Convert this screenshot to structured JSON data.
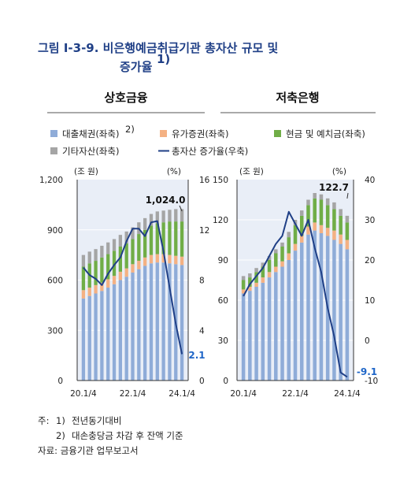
{
  "figure": {
    "title_line1": "그림 Ⅰ-3-9. 비은행예금취급기관 총자산 규모 및",
    "title_line2": "증가율",
    "title_sup": "1)"
  },
  "legend": [
    {
      "label": "대출채권(좌축)",
      "sup": "2)",
      "color": "#8facd8",
      "kind": "box"
    },
    {
      "label": "유가증권(좌축)",
      "color": "#f4b183",
      "kind": "box"
    },
    {
      "label": "현금 및 예치금(좌축)",
      "color": "#70ad47",
      "kind": "box"
    },
    {
      "label": "기타자산(좌축)",
      "color": "#a5a5a5",
      "kind": "box"
    },
    {
      "label": "총자산 증가율(우축)",
      "color": "#1f3f86",
      "kind": "line"
    }
  ],
  "notes": {
    "n1_prefix": "주:",
    "n1_num": "1)",
    "n1_text": "전년동기대비",
    "n2_num": "2)",
    "n2_text": "대손충당금 차감 후 잔액 기준",
    "source": "자료: 금융기관 업무보고서"
  },
  "chart_data": [
    {
      "type": "bar",
      "subtype": "stacked bar + line (dual axis)",
      "title": "상호금융",
      "left_unit": "(조 원)",
      "right_unit": "(%)",
      "ylim": [
        0,
        1200
      ],
      "yticks": [
        "0",
        "300",
        "600",
        "900",
        "1,200"
      ],
      "y2lim": [
        0,
        16
      ],
      "y2ticks": [
        "0",
        "4",
        "8",
        "12",
        "16"
      ],
      "xticks": [
        "20.1/4",
        "22.1/4",
        "24.1/4"
      ],
      "callouts": {
        "total": "1,024.0",
        "growth": "2.1"
      },
      "categories": [
        "20.1/4",
        "20.2/4",
        "20.3/4",
        "20.4/4",
        "21.1/4",
        "21.2/4",
        "21.3/4",
        "21.4/4",
        "22.1/4",
        "22.2/4",
        "22.3/4",
        "22.4/4",
        "23.1/4",
        "23.2/4",
        "23.3/4",
        "23.4/4",
        "24.1/4"
      ],
      "series": [
        {
          "name": "대출채권(좌축)",
          "values": [
            490,
            505,
            520,
            535,
            555,
            575,
            600,
            620,
            645,
            665,
            685,
            700,
            705,
            705,
            700,
            695,
            690
          ]
        },
        {
          "name": "유가증권(좌축)",
          "values": [
            50,
            50,
            50,
            50,
            50,
            50,
            50,
            50,
            50,
            50,
            50,
            50,
            50,
            50,
            50,
            50,
            50
          ]
        },
        {
          "name": "현금 및 예치금(좌축)",
          "values": [
            140,
            145,
            145,
            150,
            150,
            150,
            150,
            150,
            150,
            160,
            165,
            175,
            185,
            190,
            200,
            205,
            210
          ]
        },
        {
          "name": "기타자산(좌축)",
          "values": [
            70,
            70,
            70,
            70,
            70,
            70,
            70,
            70,
            70,
            70,
            70,
            70,
            70,
            70,
            70,
            74,
            74
          ]
        },
        {
          "name": "총자산 증가율(우축)",
          "values": [
            9.0,
            8.4,
            8.1,
            7.6,
            8.5,
            9.2,
            9.8,
            11.1,
            12.1,
            12.1,
            11.5,
            12.6,
            12.7,
            10.3,
            7.4,
            4.5,
            2.1
          ]
        }
      ]
    },
    {
      "type": "bar",
      "subtype": "stacked bar + line (dual axis)",
      "title": "저축은행",
      "left_unit": "(조 원)",
      "right_unit": "(%)",
      "ylim": [
        0,
        150
      ],
      "yticks": [
        "0",
        "30",
        "60",
        "90",
        "120",
        "150"
      ],
      "y2lim": [
        -10,
        40
      ],
      "y2ticks": [
        "-10",
        "0",
        "10",
        "20",
        "30",
        "40"
      ],
      "xticks": [
        "20.1/4",
        "22.1/4",
        "24.1/4"
      ],
      "callouts": {
        "total": "122.7",
        "growth": "-9.1"
      },
      "categories": [
        "20.1/4",
        "20.2/4",
        "20.3/4",
        "20.4/4",
        "21.1/4",
        "21.2/4",
        "21.3/4",
        "21.4/4",
        "22.1/4",
        "22.2/4",
        "22.3/4",
        "22.4/4",
        "23.1/4",
        "23.2/4",
        "23.3/4",
        "23.4/4",
        "24.1/4"
      ],
      "series": [
        {
          "name": "대출채권(좌축)",
          "values": [
            65,
            67,
            70,
            73,
            77,
            81,
            85,
            90,
            97,
            103,
            109,
            112,
            110,
            108,
            105,
            102,
            98
          ]
        },
        {
          "name": "유가증권(좌축)",
          "values": [
            3,
            3,
            3,
            4,
            4,
            4,
            4,
            5,
            5,
            5,
            6,
            6,
            6,
            6,
            7,
            7,
            7
          ]
        },
        {
          "name": "현금 및 예치금(좌축)",
          "values": [
            7,
            7,
            8,
            8,
            9,
            10,
            11,
            12,
            14,
            15,
            16,
            18,
            19,
            17,
            16,
            14,
            13
          ]
        },
        {
          "name": "기타자산(좌축)",
          "values": [
            3,
            3,
            3,
            3,
            3,
            3,
            3,
            4,
            4,
            4,
            4,
            4,
            4,
            5,
            5,
            5,
            5
          ]
        },
        {
          "name": "총자산 증가율(우축)",
          "values": [
            11,
            14,
            16,
            18,
            21,
            24,
            26,
            32,
            29,
            26,
            30,
            23,
            17,
            8,
            1,
            -8,
            -9.1
          ]
        }
      ]
    }
  ]
}
